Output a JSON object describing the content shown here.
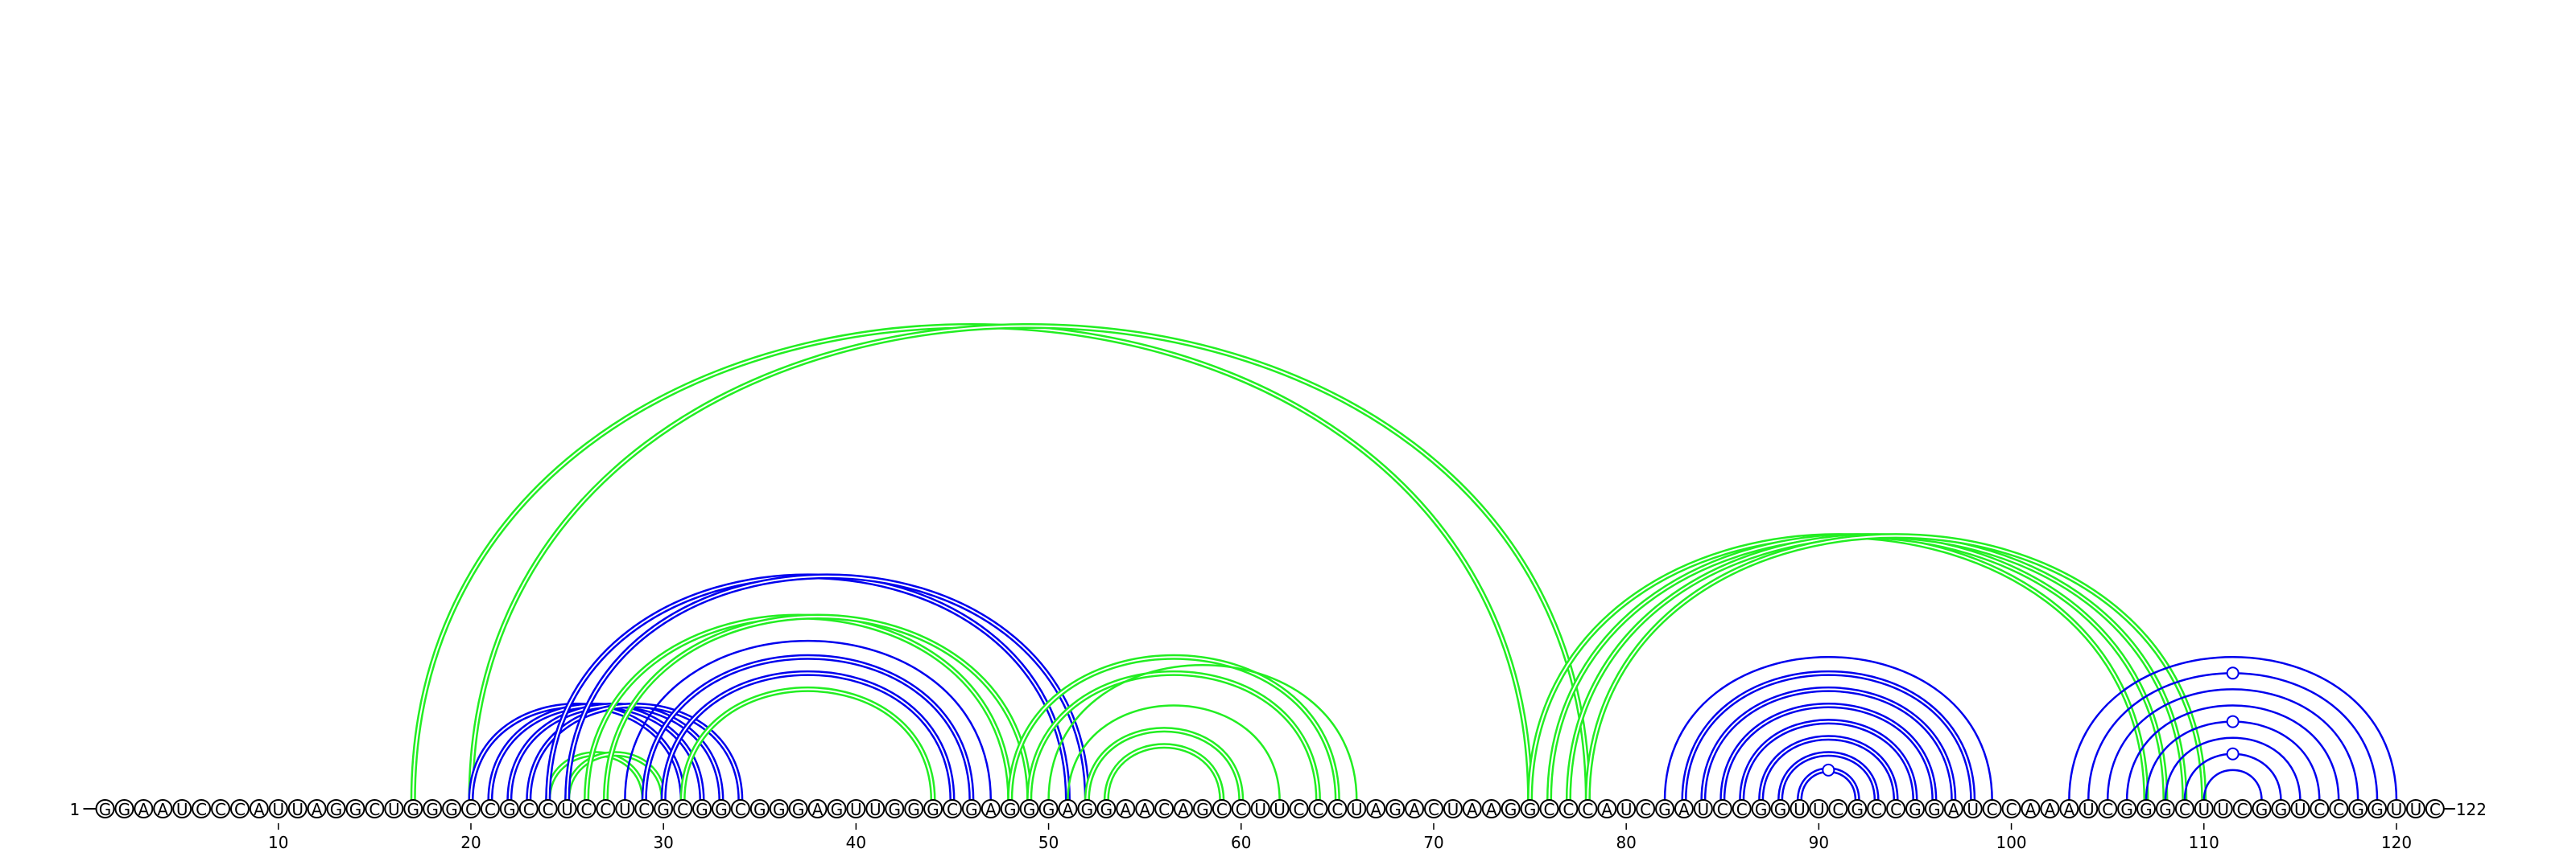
{
  "sequence": "GGAAUCCCAUUAGGCUGGGCCGCCUCCUCGCGGCGGGAGUUGGGCGAGGGAGGAACAGCCUUCCCUAGACUAAGGCCCAUCGAUCCGGUUCGCCGGAUCCAAAUCGGGCUUCGGUCCGGUUC",
  "start_label": "1",
  "end_label": "122",
  "ticks": [
    {
      "position": 10,
      "label": "10"
    },
    {
      "position": 20,
      "label": "20"
    },
    {
      "position": 30,
      "label": "30"
    },
    {
      "position": 40,
      "label": "40"
    },
    {
      "position": 50,
      "label": "50"
    },
    {
      "position": 60,
      "label": "60"
    },
    {
      "position": 70,
      "label": "70"
    },
    {
      "position": 80,
      "label": "80"
    },
    {
      "position": 90,
      "label": "90"
    },
    {
      "position": 100,
      "label": "100"
    },
    {
      "position": 110,
      "label": "110"
    },
    {
      "position": 120,
      "label": "120"
    }
  ],
  "colors": {
    "blue": "#0000ee",
    "green": "#22ee22"
  },
  "arcs": [
    {
      "i": 17,
      "j": 75,
      "color": "green",
      "style": "double"
    },
    {
      "i": 20,
      "j": 78,
      "color": "green",
      "style": "double"
    },
    {
      "i": 20,
      "j": 31,
      "color": "blue",
      "style": "double"
    },
    {
      "i": 21,
      "j": 32,
      "color": "blue",
      "style": "double"
    },
    {
      "i": 22,
      "j": 33,
      "color": "blue",
      "style": "double"
    },
    {
      "i": 23,
      "j": 34,
      "color": "blue",
      "style": "double"
    },
    {
      "i": 24,
      "j": 29,
      "color": "green",
      "style": "double"
    },
    {
      "i": 25,
      "j": 30,
      "color": "green",
      "style": "double"
    },
    {
      "i": 24,
      "j": 51,
      "color": "blue",
      "style": "double"
    },
    {
      "i": 25,
      "j": 52,
      "color": "blue",
      "style": "double"
    },
    {
      "i": 26,
      "j": 48,
      "color": "green",
      "style": "double"
    },
    {
      "i": 27,
      "j": 49,
      "color": "green",
      "style": "double"
    },
    {
      "i": 28,
      "j": 47,
      "color": "blue",
      "style": "single"
    },
    {
      "i": 29,
      "j": 46,
      "color": "blue",
      "style": "double"
    },
    {
      "i": 30,
      "j": 45,
      "color": "blue",
      "style": "double"
    },
    {
      "i": 31,
      "j": 44,
      "color": "green",
      "style": "double"
    },
    {
      "i": 48,
      "j": 65,
      "color": "green",
      "style": "double"
    },
    {
      "i": 49,
      "j": 64,
      "color": "green",
      "style": "double"
    },
    {
      "i": 50,
      "j": 66,
      "color": "green",
      "style": "single"
    },
    {
      "i": 51,
      "j": 62,
      "color": "green",
      "style": "single"
    },
    {
      "i": 52,
      "j": 60,
      "color": "green",
      "style": "double"
    },
    {
      "i": 53,
      "j": 59,
      "color": "green",
      "style": "double"
    },
    {
      "i": 75,
      "j": 107,
      "color": "green",
      "style": "double"
    },
    {
      "i": 76,
      "j": 108,
      "color": "green",
      "style": "double"
    },
    {
      "i": 77,
      "j": 109,
      "color": "green",
      "style": "double"
    },
    {
      "i": 78,
      "j": 110,
      "color": "green",
      "style": "double"
    },
    {
      "i": 82,
      "j": 99,
      "color": "blue",
      "style": "single"
    },
    {
      "i": 83,
      "j": 98,
      "color": "blue",
      "style": "double"
    },
    {
      "i": 84,
      "j": 97,
      "color": "blue",
      "style": "double"
    },
    {
      "i": 85,
      "j": 96,
      "color": "blue",
      "style": "double"
    },
    {
      "i": 86,
      "j": 95,
      "color": "blue",
      "style": "double"
    },
    {
      "i": 87,
      "j": 94,
      "color": "blue",
      "style": "double"
    },
    {
      "i": 88,
      "j": 93,
      "color": "blue",
      "style": "double"
    },
    {
      "i": 89,
      "j": 92,
      "color": "blue",
      "style": "double"
    },
    {
      "i": 103,
      "j": 120,
      "color": "blue",
      "style": "single"
    },
    {
      "i": 104,
      "j": 119,
      "color": "blue",
      "style": "single"
    },
    {
      "i": 105,
      "j": 118,
      "color": "blue",
      "style": "single"
    },
    {
      "i": 106,
      "j": 117,
      "color": "blue",
      "style": "single"
    },
    {
      "i": 107,
      "j": 116,
      "color": "blue",
      "style": "single"
    },
    {
      "i": 108,
      "j": 115,
      "color": "blue",
      "style": "single"
    },
    {
      "i": 109,
      "j": 114,
      "color": "blue",
      "style": "single"
    },
    {
      "i": 110,
      "j": 113,
      "color": "blue",
      "style": "single"
    }
  ],
  "bulges": [
    {
      "i": 89,
      "j": 92,
      "color": "blue"
    },
    {
      "i": 104,
      "j": 119,
      "color": "blue"
    },
    {
      "i": 107,
      "j": 116,
      "color": "blue"
    },
    {
      "i": 109,
      "j": 114,
      "color": "blue"
    }
  ]
}
